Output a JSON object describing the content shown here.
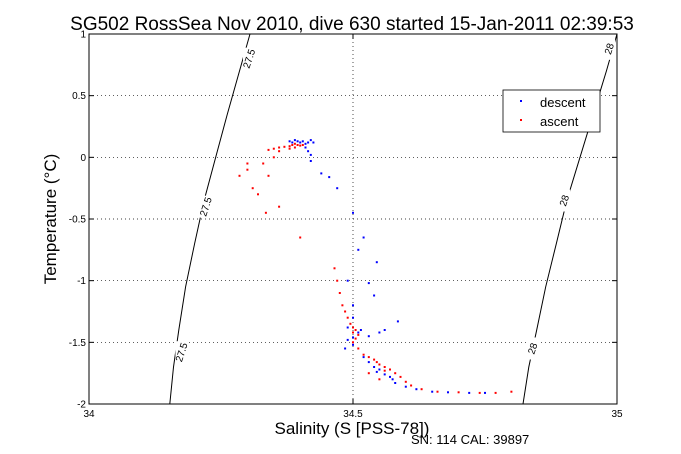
{
  "chart_data": {
    "type": "scatter",
    "title": "SG502 RossSea Nov 2010, dive 630 started 15-Jan-2011 02:39:53",
    "xlabel": "Salinity (S [PSS-78])",
    "ylabel": "Temperature (°C)",
    "xlim": [
      34,
      35
    ],
    "ylim": [
      -2,
      1
    ],
    "xticks": [
      34,
      34.5,
      35
    ],
    "xtick_labels": [
      "34",
      "34.5",
      "35"
    ],
    "yticks": [
      -2,
      -1.5,
      -1,
      -0.5,
      0,
      0.5,
      1
    ],
    "ytick_labels": [
      "-2",
      "-1.5",
      "-1",
      "-0.5",
      "0",
      "0.5",
      "1"
    ],
    "grid": true,
    "legend_position": "top-right",
    "footer": "SN: 114  CAL: 39897",
    "contours": [
      {
        "label": "27.5",
        "points": [
          [
            34.305,
            1.0
          ],
          [
            34.285,
            0.7
          ],
          [
            34.262,
            0.35
          ],
          [
            34.24,
            0.0
          ],
          [
            34.218,
            -0.35
          ],
          [
            34.2,
            -0.7
          ],
          [
            34.183,
            -1.05
          ],
          [
            34.17,
            -1.4
          ],
          [
            34.16,
            -1.7
          ],
          [
            34.153,
            -2.0
          ]
        ],
        "label_positions": [
          [
            34.303,
            0.8
          ],
          [
            34.221,
            -0.4
          ],
          [
            34.175,
            -1.58
          ]
        ]
      },
      {
        "label": "28",
        "points": [
          [
            35.0,
            1.0
          ],
          [
            34.98,
            0.7
          ],
          [
            34.955,
            0.35
          ],
          [
            34.93,
            0.0
          ],
          [
            34.905,
            -0.35
          ],
          [
            34.885,
            -0.7
          ],
          [
            34.865,
            -1.05
          ],
          [
            34.848,
            -1.4
          ],
          [
            34.833,
            -1.7
          ],
          [
            34.822,
            -2.0
          ]
        ],
        "label_positions": [
          [
            34.985,
            0.88
          ],
          [
            34.9,
            -0.35
          ],
          [
            34.84,
            -1.55
          ]
        ]
      }
    ],
    "series": [
      {
        "name": "descent",
        "color": "#0000ff",
        "points": [
          [
            34.38,
            0.13
          ],
          [
            34.385,
            0.12
          ],
          [
            34.39,
            0.14
          ],
          [
            34.395,
            0.13
          ],
          [
            34.4,
            0.12
          ],
          [
            34.405,
            0.13
          ],
          [
            34.41,
            0.11
          ],
          [
            34.415,
            0.12
          ],
          [
            34.42,
            0.14
          ],
          [
            34.425,
            0.12
          ],
          [
            34.41,
            0.08
          ],
          [
            34.415,
            0.05
          ],
          [
            34.42,
            0.02
          ],
          [
            34.42,
            -0.03
          ],
          [
            34.44,
            -0.13
          ],
          [
            34.455,
            -0.16
          ],
          [
            34.47,
            -0.25
          ],
          [
            34.5,
            -0.45
          ],
          [
            34.52,
            -0.65
          ],
          [
            34.51,
            -0.75
          ],
          [
            34.545,
            -0.85
          ],
          [
            34.53,
            -1.02
          ],
          [
            34.54,
            -1.12
          ],
          [
            34.49,
            -1.0
          ],
          [
            34.5,
            -1.2
          ],
          [
            34.5,
            -1.3
          ],
          [
            34.49,
            -1.38
          ],
          [
            34.51,
            -1.42
          ],
          [
            34.5,
            -1.46
          ],
          [
            34.49,
            -1.48
          ],
          [
            34.5,
            -1.52
          ],
          [
            34.485,
            -1.55
          ],
          [
            34.515,
            -1.4
          ],
          [
            34.53,
            -1.45
          ],
          [
            34.55,
            -1.42
          ],
          [
            34.56,
            -1.4
          ],
          [
            34.585,
            -1.33
          ],
          [
            34.52,
            -1.62
          ],
          [
            34.53,
            -1.66
          ],
          [
            34.54,
            -1.7
          ],
          [
            34.55,
            -1.72
          ],
          [
            34.545,
            -1.74
          ],
          [
            34.56,
            -1.76
          ],
          [
            34.57,
            -1.78
          ],
          [
            34.575,
            -1.8
          ],
          [
            34.58,
            -1.83
          ],
          [
            34.6,
            -1.86
          ],
          [
            34.62,
            -1.88
          ],
          [
            34.65,
            -1.9
          ],
          [
            34.68,
            -1.905
          ],
          [
            34.72,
            -1.91
          ],
          [
            34.75,
            -1.91
          ]
        ]
      },
      {
        "name": "ascent",
        "color": "#ff0000",
        "points": [
          [
            34.34,
            0.06
          ],
          [
            34.35,
            0.07
          ],
          [
            34.36,
            0.08
          ],
          [
            34.37,
            0.085
          ],
          [
            34.38,
            0.09
          ],
          [
            34.385,
            0.1
          ],
          [
            34.39,
            0.11
          ],
          [
            34.395,
            0.1
          ],
          [
            34.4,
            0.095
          ],
          [
            34.405,
            0.1
          ],
          [
            34.39,
            0.08
          ],
          [
            34.38,
            0.07
          ],
          [
            34.36,
            0.05
          ],
          [
            34.35,
            0.0
          ],
          [
            34.33,
            -0.05
          ],
          [
            34.3,
            -0.1
          ],
          [
            34.285,
            -0.15
          ],
          [
            34.32,
            -0.3
          ],
          [
            34.36,
            -0.4
          ],
          [
            34.4,
            -0.65
          ],
          [
            34.335,
            -0.45
          ],
          [
            34.3,
            -0.05
          ],
          [
            34.31,
            -0.25
          ],
          [
            34.34,
            -0.15
          ],
          [
            34.465,
            -0.9
          ],
          [
            34.47,
            -1.0
          ],
          [
            34.475,
            -1.1
          ],
          [
            34.48,
            -1.2
          ],
          [
            34.485,
            -1.25
          ],
          [
            34.49,
            -1.3
          ],
          [
            34.495,
            -1.35
          ],
          [
            34.5,
            -1.38
          ],
          [
            34.505,
            -1.4
          ],
          [
            34.5,
            -1.42
          ],
          [
            34.51,
            -1.44
          ],
          [
            34.505,
            -1.47
          ],
          [
            34.5,
            -1.5
          ],
          [
            34.51,
            -1.55
          ],
          [
            34.52,
            -1.6
          ],
          [
            34.53,
            -1.62
          ],
          [
            34.54,
            -1.64
          ],
          [
            34.545,
            -1.66
          ],
          [
            34.55,
            -1.68
          ],
          [
            34.56,
            -1.7
          ],
          [
            34.57,
            -1.72
          ],
          [
            34.58,
            -1.75
          ],
          [
            34.59,
            -1.78
          ],
          [
            34.6,
            -1.82
          ],
          [
            34.61,
            -1.85
          ],
          [
            34.63,
            -1.88
          ],
          [
            34.66,
            -1.9
          ],
          [
            34.7,
            -1.905
          ],
          [
            34.74,
            -1.91
          ],
          [
            34.77,
            -1.91
          ],
          [
            34.8,
            -1.9
          ],
          [
            34.53,
            -1.75
          ],
          [
            34.55,
            -1.8
          ],
          [
            34.56,
            -1.73
          ]
        ]
      }
    ]
  }
}
